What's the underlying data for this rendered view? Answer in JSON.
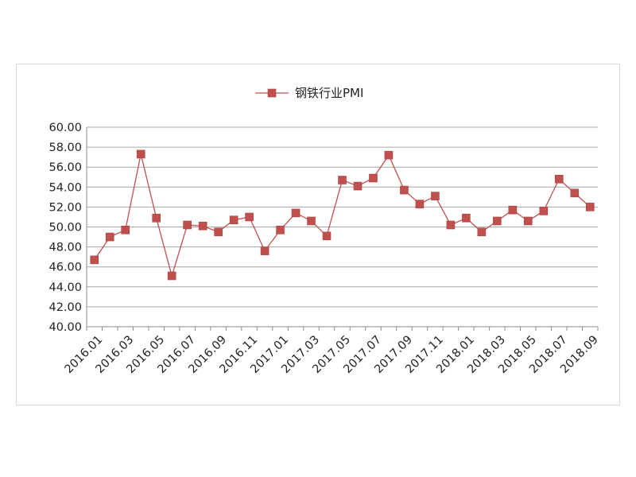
{
  "chart_data": {
    "type": "line",
    "title": "",
    "xlabel": "",
    "ylabel": "",
    "ylim": [
      40,
      60
    ],
    "yticks": [
      "40.00",
      "42.00",
      "44.00",
      "46.00",
      "48.00",
      "50.00",
      "52.00",
      "54.00",
      "56.00",
      "58.00",
      "60.00"
    ],
    "xtick_labels": [
      "2016.01",
      "2016.03",
      "2016.05",
      "2016.07",
      "2016.09",
      "2016.11",
      "2017.01",
      "2017.03",
      "2017.05",
      "2017.07",
      "2017.09",
      "2017.11",
      "2018.01",
      "2018.03",
      "2018.05",
      "2018.07",
      "2018.09"
    ],
    "categories": [
      "2016.01",
      "2016.02",
      "2016.03",
      "2016.04",
      "2016.05",
      "2016.06",
      "2016.07",
      "2016.08",
      "2016.09",
      "2016.10",
      "2016.11",
      "2016.12",
      "2017.01",
      "2017.02",
      "2017.03",
      "2017.04",
      "2017.05",
      "2017.06",
      "2017.07",
      "2017.08",
      "2017.09",
      "2017.10",
      "2017.11",
      "2017.12",
      "2018.01",
      "2018.02",
      "2018.03",
      "2018.04",
      "2018.05",
      "2018.06",
      "2018.07",
      "2018.08",
      "2018.09"
    ],
    "grid": true,
    "legend_position": "top",
    "series": [
      {
        "name": "钢铁行业PMI",
        "color": "#c0504d",
        "marker": "square",
        "values": [
          46.7,
          49.0,
          49.7,
          57.3,
          50.9,
          45.1,
          50.2,
          50.1,
          49.5,
          50.7,
          51.0,
          47.6,
          49.7,
          51.4,
          50.6,
          49.1,
          54.7,
          54.1,
          54.9,
          57.2,
          53.7,
          52.3,
          53.1,
          50.2,
          50.9,
          49.5,
          50.6,
          51.7,
          50.6,
          51.6,
          54.8,
          53.4,
          52.0
        ]
      }
    ]
  }
}
